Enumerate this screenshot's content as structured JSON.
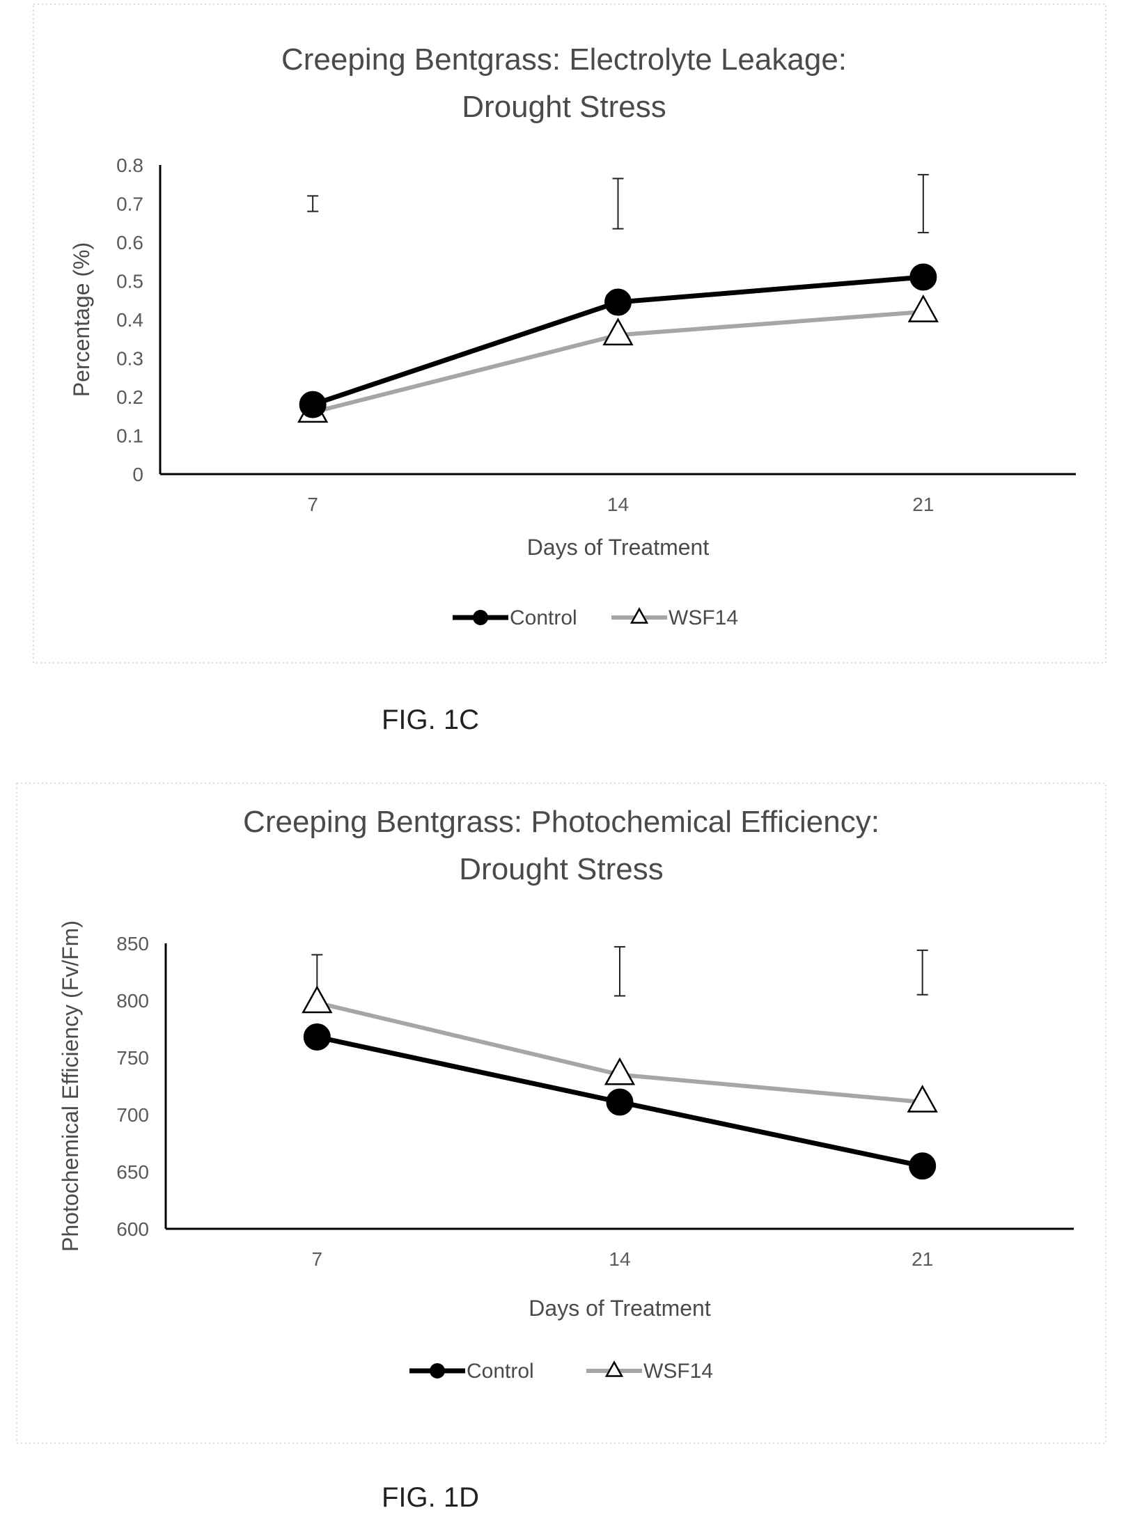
{
  "chart_data": [
    {
      "type": "line",
      "title": [
        "Creeping Bentgrass: Electrolyte Leakage:",
        "Drought Stress"
      ],
      "xlabel": "Days of Treatment",
      "ylabel": "Percentage (%)",
      "categories": [
        "7",
        "14",
        "21"
      ],
      "yticks": [
        "0",
        "0.1",
        "0.2",
        "0.3",
        "0.4",
        "0.5",
        "0.6",
        "0.7",
        "0.8"
      ],
      "ylim": [
        0,
        0.8
      ],
      "legend_position": "bottom",
      "series": [
        {
          "name": "Control",
          "values": [
            0.18,
            0.445,
            0.51
          ],
          "color": "#000000",
          "marker": "circle"
        },
        {
          "name": "WSF14",
          "values": [
            0.16,
            0.36,
            0.42
          ],
          "color": "#a6a6a6",
          "marker": "triangle"
        }
      ],
      "error_bars": [
        {
          "x": "7",
          "low": 0.68,
          "high": 0.72
        },
        {
          "x": "14",
          "low": 0.635,
          "high": 0.765
        },
        {
          "x": "21",
          "low": 0.625,
          "high": 0.775
        }
      ],
      "caption": "FIG. 1C"
    },
    {
      "type": "line",
      "title": [
        "Creeping Bentgrass: Photochemical Efficiency:",
        "Drought Stress"
      ],
      "xlabel": "Days of Treatment",
      "ylabel": "Photochemical Efficiency (Fv/Fm)",
      "categories": [
        "7",
        "14",
        "21"
      ],
      "yticks": [
        "600",
        "650",
        "700",
        "750",
        "800",
        "850"
      ],
      "ylim": [
        600,
        850
      ],
      "legend_position": "bottom",
      "series": [
        {
          "name": "Control",
          "values": [
            768,
            711,
            655
          ],
          "color": "#000000",
          "marker": "circle"
        },
        {
          "name": "WSF14",
          "values": [
            798,
            735,
            711
          ],
          "color": "#a6a6a6",
          "marker": "triangle"
        }
      ],
      "error_bars": [
        {
          "x": "7",
          "low": 802,
          "high": 840
        },
        {
          "x": "14",
          "low": 804,
          "high": 847
        },
        {
          "x": "21",
          "low": 805,
          "high": 844
        }
      ],
      "caption": "FIG. 1D"
    }
  ]
}
